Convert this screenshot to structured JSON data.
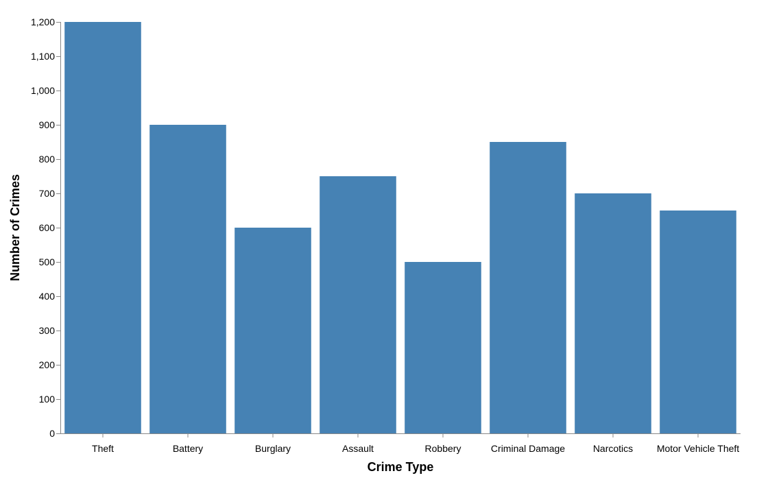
{
  "chart_data": {
    "type": "bar",
    "title": "",
    "xlabel": "Crime Type",
    "ylabel": "Number of Crimes",
    "categories": [
      "Theft",
      "Battery",
      "Burglary",
      "Assault",
      "Robbery",
      "Criminal Damage",
      "Narcotics",
      "Motor Vehicle Theft"
    ],
    "values": [
      1200,
      900,
      600,
      750,
      500,
      850,
      700,
      650
    ],
    "ylim": [
      0,
      1200
    ],
    "yticks": [
      0,
      100,
      200,
      300,
      400,
      500,
      600,
      700,
      800,
      900,
      1000,
      1100,
      1200
    ],
    "ytick_labels": [
      "0",
      "100",
      "200",
      "300",
      "400",
      "500",
      "600",
      "700",
      "800",
      "900",
      "1,000",
      "1,100",
      "1,200"
    ],
    "grid": false,
    "bar_color": "#4682b4"
  }
}
